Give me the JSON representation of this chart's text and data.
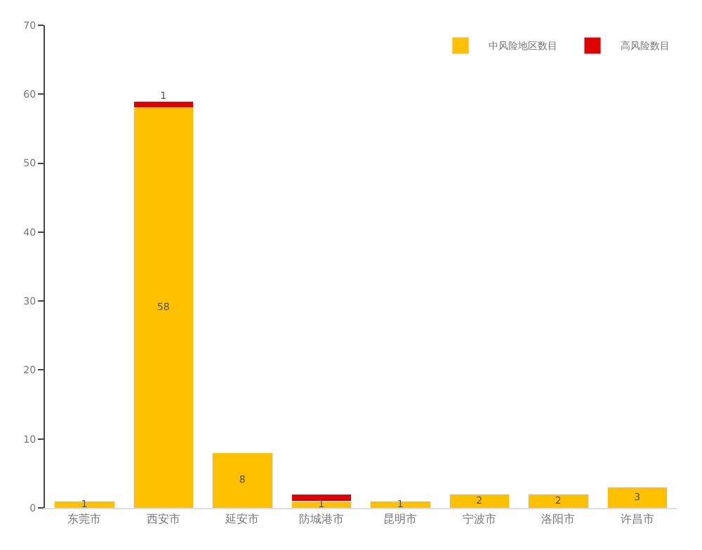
{
  "chart_data": {
    "type": "bar",
    "stacked": true,
    "categories": [
      "东莞市",
      "西安市",
      "延安市",
      "防城港市",
      "昆明市",
      "宁波市",
      "洛阳市",
      "许昌市"
    ],
    "series": [
      {
        "name": "中风险地区数目",
        "color": "#ffc000",
        "values": [
          1,
          58,
          8,
          1,
          1,
          2,
          2,
          3
        ],
        "value_labels": [
          "1",
          "58",
          "8",
          "1",
          "1",
          "2",
          "2",
          "3"
        ]
      },
      {
        "name": "高风险数目",
        "color": "#e00000",
        "values": [
          null,
          1,
          null,
          1,
          null,
          null,
          null,
          null
        ],
        "value_labels": [
          null,
          "1",
          null,
          null,
          null,
          null,
          null,
          null
        ]
      }
    ],
    "ylim": [
      0,
      70
    ],
    "yticks": [
      0,
      10,
      20,
      30,
      40,
      50,
      60,
      70
    ],
    "legend": "top right"
  }
}
